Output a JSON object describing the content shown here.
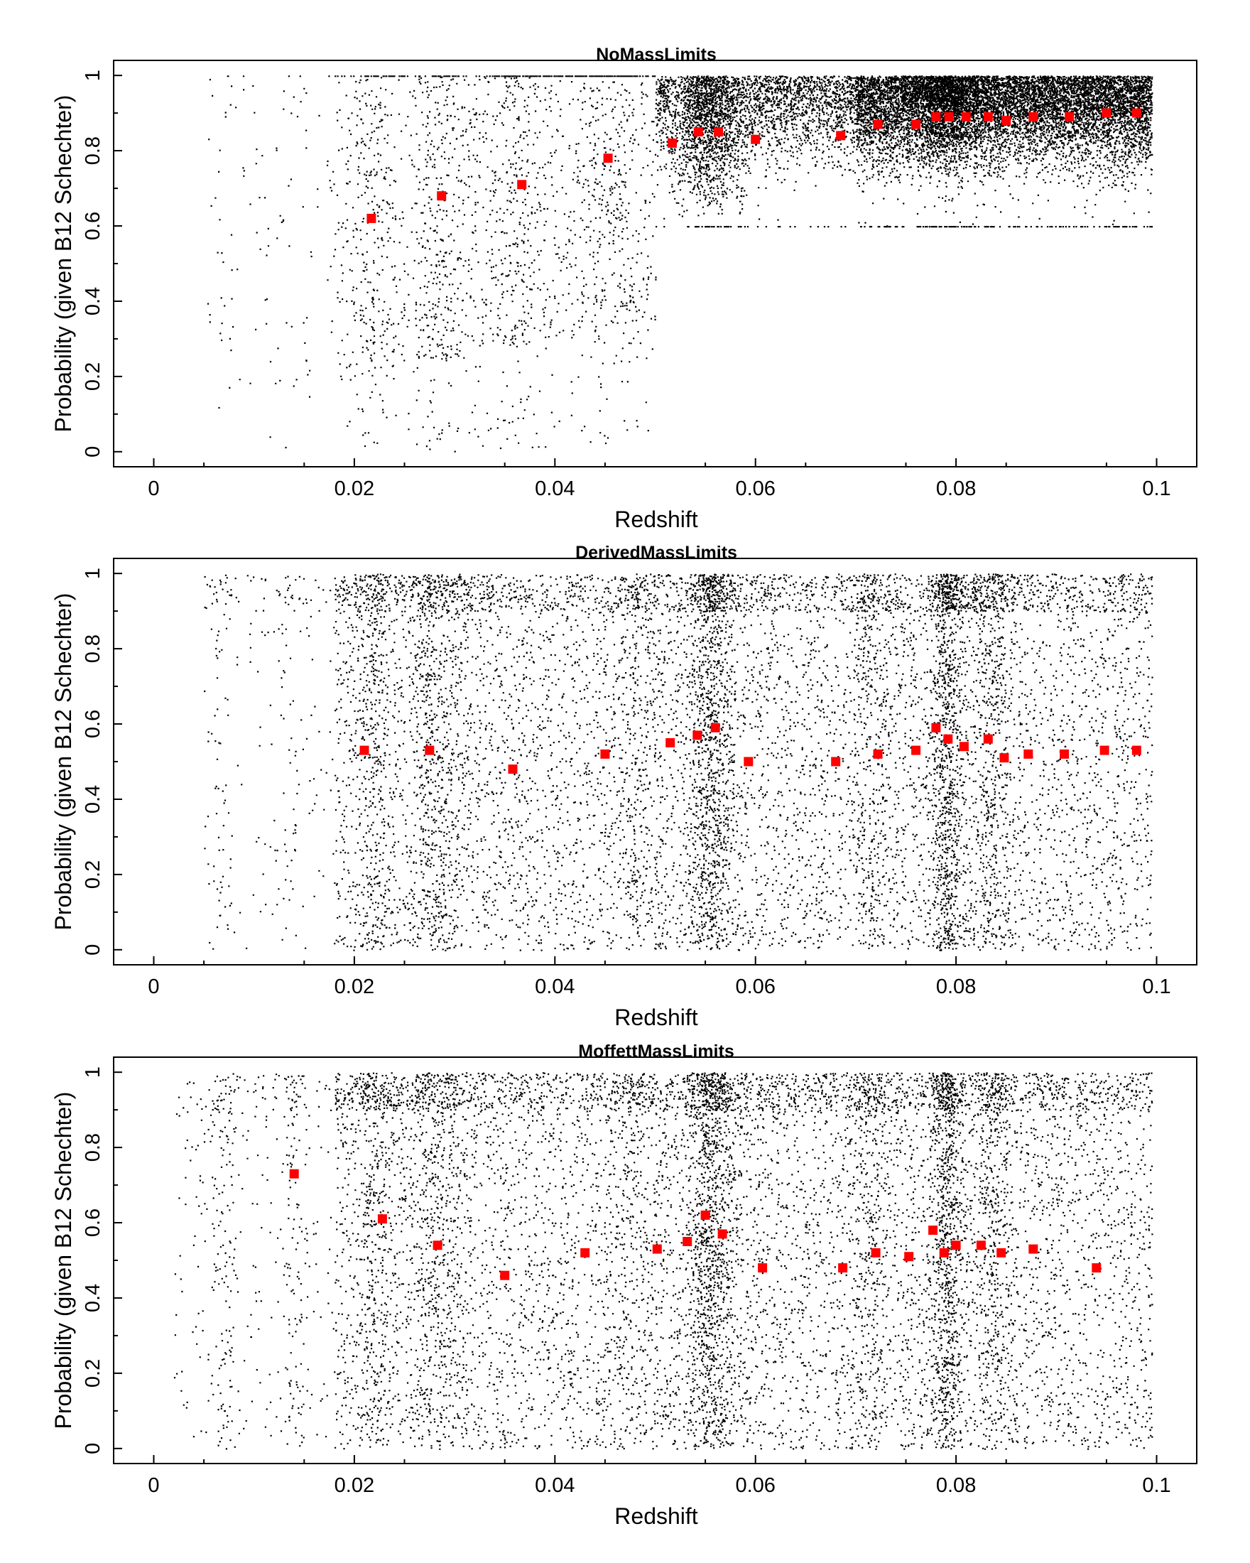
{
  "chart_data": [
    {
      "type": "scatter",
      "title": "NoMassLimits",
      "xlabel": "Redshift",
      "ylabel": "Probability (given B12 Schechter)",
      "xlim": [
        -0.004,
        0.104
      ],
      "ylim": [
        -0.04,
        1.04
      ],
      "xticks": [
        "0",
        "0.02",
        "0.04",
        "0.06",
        "0.08",
        "0.1"
      ],
      "yticks": [
        "0",
        "0.2",
        "0.4",
        "0.6",
        "0.8",
        "1"
      ],
      "grid": false,
      "colors": {
        "points": "#000000",
        "binned_means": "#ff0000"
      },
      "series": [
        {
          "kind": "galaxies",
          "style": "black dots, dense, mostly high probability (0.7–1) above z≈0.05"
        },
        {
          "kind": "binned_means",
          "x": [
            0.0217,
            0.0287,
            0.0367,
            0.0453,
            0.0517,
            0.0543,
            0.0563,
            0.06,
            0.0685,
            0.0722,
            0.076,
            0.078,
            0.0793,
            0.081,
            0.0832,
            0.085,
            0.0877,
            0.0913,
            0.095,
            0.098
          ],
          "y": [
            0.62,
            0.68,
            0.71,
            0.78,
            0.82,
            0.85,
            0.85,
            0.83,
            0.84,
            0.87,
            0.87,
            0.89,
            0.89,
            0.89,
            0.89,
            0.88,
            0.89,
            0.89,
            0.9,
            0.9
          ]
        }
      ]
    },
    {
      "type": "scatter",
      "title": "DerivedMassLimits",
      "xlabel": "Redshift",
      "ylabel": "Probability (given B12 Schechter)",
      "xlim": [
        -0.004,
        0.104
      ],
      "ylim": [
        -0.04,
        1.04
      ],
      "xticks": [
        "0",
        "0.02",
        "0.04",
        "0.06",
        "0.08",
        "0.1"
      ],
      "yticks": [
        "0",
        "0.2",
        "0.4",
        "0.6",
        "0.8",
        "1"
      ],
      "grid": false,
      "colors": {
        "points": "#000000",
        "binned_means": "#ff0000"
      },
      "series": [
        {
          "kind": "galaxies",
          "style": "black dots, roughly uniform in probability 0–1"
        },
        {
          "kind": "binned_means",
          "x": [
            0.021,
            0.0275,
            0.0358,
            0.045,
            0.0515,
            0.0542,
            0.056,
            0.0593,
            0.068,
            0.0722,
            0.076,
            0.078,
            0.0792,
            0.0808,
            0.0832,
            0.0848,
            0.0872,
            0.0908,
            0.0948,
            0.098
          ],
          "y": [
            0.53,
            0.53,
            0.48,
            0.52,
            0.55,
            0.57,
            0.59,
            0.5,
            0.5,
            0.52,
            0.53,
            0.59,
            0.56,
            0.54,
            0.56,
            0.51,
            0.52,
            0.52,
            0.53,
            0.53
          ]
        }
      ]
    },
    {
      "type": "scatter",
      "title": "MoffettMassLimits",
      "xlabel": "Redshift",
      "ylabel": "Probability (given B12 Schechter)",
      "xlim": [
        -0.004,
        0.104
      ],
      "ylim": [
        -0.04,
        1.04
      ],
      "xticks": [
        "0",
        "0.02",
        "0.04",
        "0.06",
        "0.08",
        "0.1"
      ],
      "yticks": [
        "0",
        "0.2",
        "0.4",
        "0.6",
        "0.8",
        "1"
      ],
      "grid": false,
      "colors": {
        "points": "#000000",
        "binned_means": "#ff0000"
      },
      "series": [
        {
          "kind": "galaxies",
          "style": "black dots, roughly uniform in probability 0–1, sparse below z≈0.02"
        },
        {
          "kind": "binned_means",
          "x": [
            0.014,
            0.0228,
            0.0283,
            0.035,
            0.043,
            0.0502,
            0.0532,
            0.055,
            0.0567,
            0.0607,
            0.0687,
            0.072,
            0.0753,
            0.0777,
            0.0788,
            0.08,
            0.0825,
            0.0845,
            0.0877,
            0.094
          ],
          "y": [
            0.73,
            0.61,
            0.54,
            0.46,
            0.52,
            0.53,
            0.55,
            0.62,
            0.57,
            0.48,
            0.48,
            0.52,
            0.51,
            0.58,
            0.52,
            0.54,
            0.54,
            0.52,
            0.53,
            0.48
          ]
        }
      ]
    }
  ]
}
